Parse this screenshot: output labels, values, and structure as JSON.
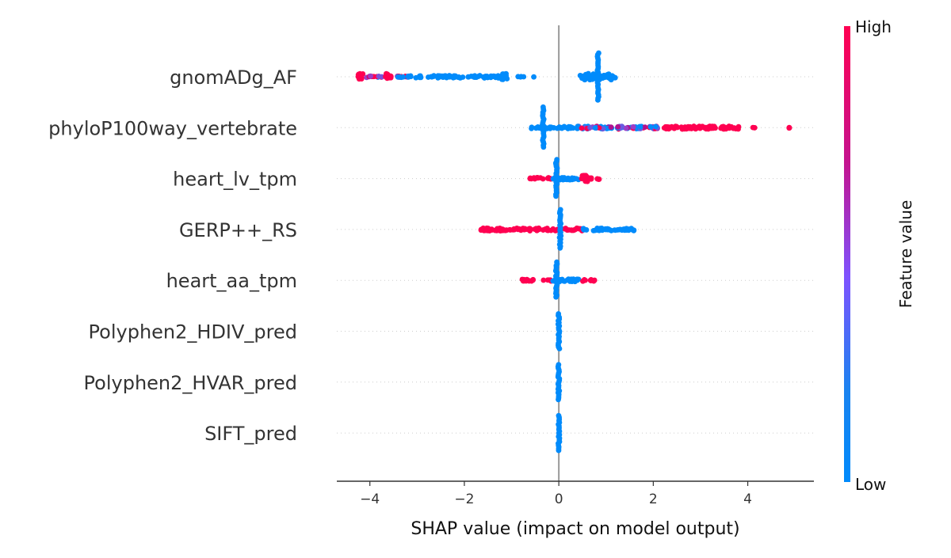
{
  "chart_data": {
    "type": "scatter",
    "subtype": "shap-beeswarm",
    "xlabel": "SHAP value (impact on model output)",
    "xlim": [
      -4.7,
      5.4
    ],
    "xticks": [
      -4,
      -2,
      0,
      2,
      4
    ],
    "xtick_labels": [
      "−4",
      "−2",
      "0",
      "2",
      "4"
    ],
    "grid": "dotted horizontal per feature",
    "colorbar": {
      "label": "Feature value",
      "high_label": "High",
      "low_label": "Low",
      "colors": [
        "#008afb",
        "#1e88e5",
        "#7c52ff",
        "#c20088",
        "#ff0052"
      ]
    },
    "colors": {
      "low": "#008bfb",
      "high": "#ff0051",
      "mid": "#9c3dc6"
    },
    "features": [
      {
        "name": "gnomADg_AF",
        "segments": [
          {
            "from": -4.25,
            "to": -3.2,
            "color": "mix",
            "density": 0.55
          },
          {
            "from": -3.2,
            "to": -1.15,
            "color": "low",
            "density": 0.75
          },
          {
            "from": -0.9,
            "to": -0.45,
            "color": "low",
            "density": 0.2
          },
          {
            "from": 0.45,
            "to": 1.2,
            "color": "low",
            "density": 1.0
          }
        ],
        "pile": {
          "at": 0.83,
          "height": 3.0,
          "color": "low"
        },
        "clusters": [
          {
            "at": -3.6,
            "color": "high"
          },
          {
            "at": -4.2,
            "color": "high"
          },
          {
            "at": -1.15,
            "color": "low"
          }
        ]
      },
      {
        "name": "phyloP100way_vertebrate",
        "segments": [
          {
            "from": -0.6,
            "to": 0.4,
            "color": "low",
            "density": 0.7
          },
          {
            "from": 0.4,
            "to": 2.2,
            "color": "mix-low",
            "density": 0.85
          },
          {
            "from": 2.2,
            "to": 3.85,
            "color": "high",
            "density": 0.9
          },
          {
            "from": 4.1,
            "to": 4.15,
            "color": "high",
            "density": 0.3
          },
          {
            "from": 4.85,
            "to": 4.9,
            "color": "high",
            "density": 0.3
          }
        ],
        "pile": {
          "at": -0.33,
          "height": 2.6,
          "color": "low"
        },
        "clusters": []
      },
      {
        "name": "heart_lv_tpm",
        "segments": [
          {
            "from": -0.65,
            "to": -0.15,
            "color": "high",
            "density": 0.6
          },
          {
            "from": -0.15,
            "to": 0.45,
            "color": "low",
            "density": 0.8
          },
          {
            "from": 0.45,
            "to": 0.9,
            "color": "high",
            "density": 0.5
          }
        ],
        "pile": {
          "at": -0.05,
          "height": 2.4,
          "color": "low"
        },
        "clusters": [
          {
            "at": 0.55,
            "color": "high"
          }
        ]
      },
      {
        "name": "GERP++_RS",
        "segments": [
          {
            "from": -1.65,
            "to": 0.5,
            "color": "high",
            "density": 0.85
          },
          {
            "from": 0.5,
            "to": 1.7,
            "color": "low",
            "density": 0.75
          }
        ],
        "pile": {
          "at": 0.03,
          "height": 2.5,
          "color": "low"
        },
        "clusters": []
      },
      {
        "name": "heart_aa_tpm",
        "segments": [
          {
            "from": -0.85,
            "to": -0.15,
            "color": "high",
            "density": 0.6
          },
          {
            "from": -0.15,
            "to": 0.45,
            "color": "low",
            "density": 0.8
          },
          {
            "from": 0.45,
            "to": 0.8,
            "color": "high",
            "density": 0.5
          }
        ],
        "pile": {
          "at": -0.05,
          "height": 2.3,
          "color": "low"
        },
        "clusters": []
      },
      {
        "name": "Polyphen2_HDIV_pred",
        "segments": [],
        "pile": {
          "at": 0.0,
          "height": 2.2,
          "color": "low"
        },
        "clusters": []
      },
      {
        "name": "Polyphen2_HVAR_pred",
        "segments": [],
        "pile": {
          "at": 0.0,
          "height": 2.2,
          "color": "low"
        },
        "clusters": []
      },
      {
        "name": "SIFT_pred",
        "segments": [],
        "pile": {
          "at": 0.0,
          "height": 2.2,
          "color": "low"
        },
        "clusters": []
      }
    ]
  }
}
